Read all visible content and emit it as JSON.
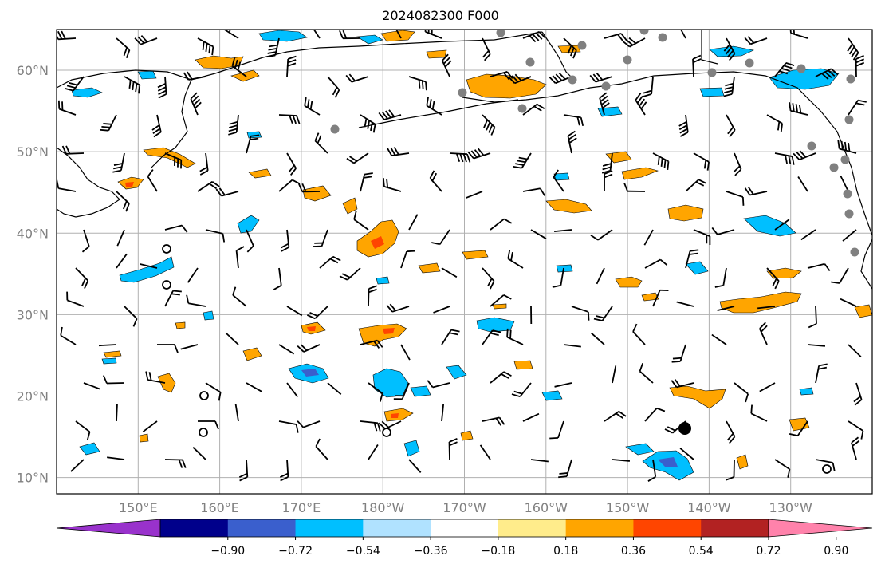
{
  "title": "2024082300 F000",
  "map": {
    "lat_labels": [
      "10°N",
      "20°N",
      "30°N",
      "40°N",
      "50°N",
      "60°N"
    ],
    "lon_labels": [
      "150°E",
      "160°E",
      "170°E",
      "180°W",
      "170°W",
      "160°W",
      "150°W",
      "140°W",
      "130°W"
    ],
    "extent": {
      "lon_min": 140,
      "lon_max": 240,
      "lat_min": 8,
      "lat_max": 65
    },
    "gridlines": true,
    "barb_color": "#000000",
    "contour_line_color": "#000000",
    "station_marker_color": "#808080"
  },
  "colorbar": {
    "colors": [
      "#9932cc",
      "#00008b",
      "#3a5fcd",
      "#00bfff",
      "#b0e2ff",
      "#ffffff",
      "#ffec8b",
      "#ffa500",
      "#ff4500",
      "#b22222",
      "#ff82ab"
    ],
    "tick_labels": [
      "−0.90",
      "−0.72",
      "−0.54",
      "−0.36",
      "−0.18",
      "0.18",
      "0.36",
      "0.54",
      "0.72",
      "0.90"
    ],
    "extend": "both"
  }
}
